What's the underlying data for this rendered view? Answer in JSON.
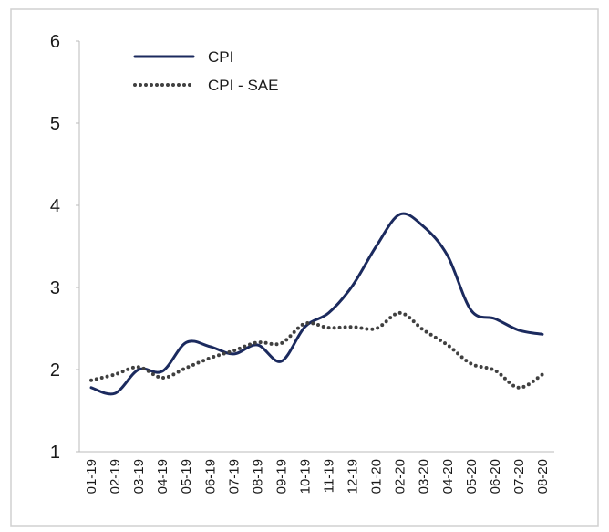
{
  "chart_data": {
    "type": "line",
    "categories": [
      "01-19",
      "02-19",
      "03-19",
      "04-19",
      "05-19",
      "06-19",
      "07-19",
      "08-19",
      "09-19",
      "10-19",
      "11-19",
      "12-19",
      "01-20",
      "02-20",
      "03-20",
      "04-20",
      "05-20",
      "06-20",
      "07-20",
      "08-20"
    ],
    "series": [
      {
        "name": "CPI",
        "color": "#1b2a5e",
        "dash": "solid",
        "values": [
          1.78,
          1.71,
          2.0,
          1.98,
          2.33,
          2.28,
          2.19,
          2.3,
          2.1,
          2.52,
          2.69,
          3.02,
          3.5,
          3.89,
          3.74,
          3.39,
          2.72,
          2.62,
          2.48,
          2.43
        ]
      },
      {
        "name": "CPI - SAE",
        "color": "#404040",
        "dash": "dotted",
        "values": [
          1.87,
          1.94,
          2.03,
          1.9,
          2.02,
          2.14,
          2.23,
          2.33,
          2.32,
          2.56,
          2.51,
          2.52,
          2.5,
          2.69,
          2.48,
          2.3,
          2.07,
          1.99,
          1.78,
          1.94
        ]
      }
    ],
    "ylim": [
      1,
      6
    ],
    "yticks": [
      1,
      2,
      3,
      4,
      5,
      6
    ],
    "legend": "upper-left"
  }
}
